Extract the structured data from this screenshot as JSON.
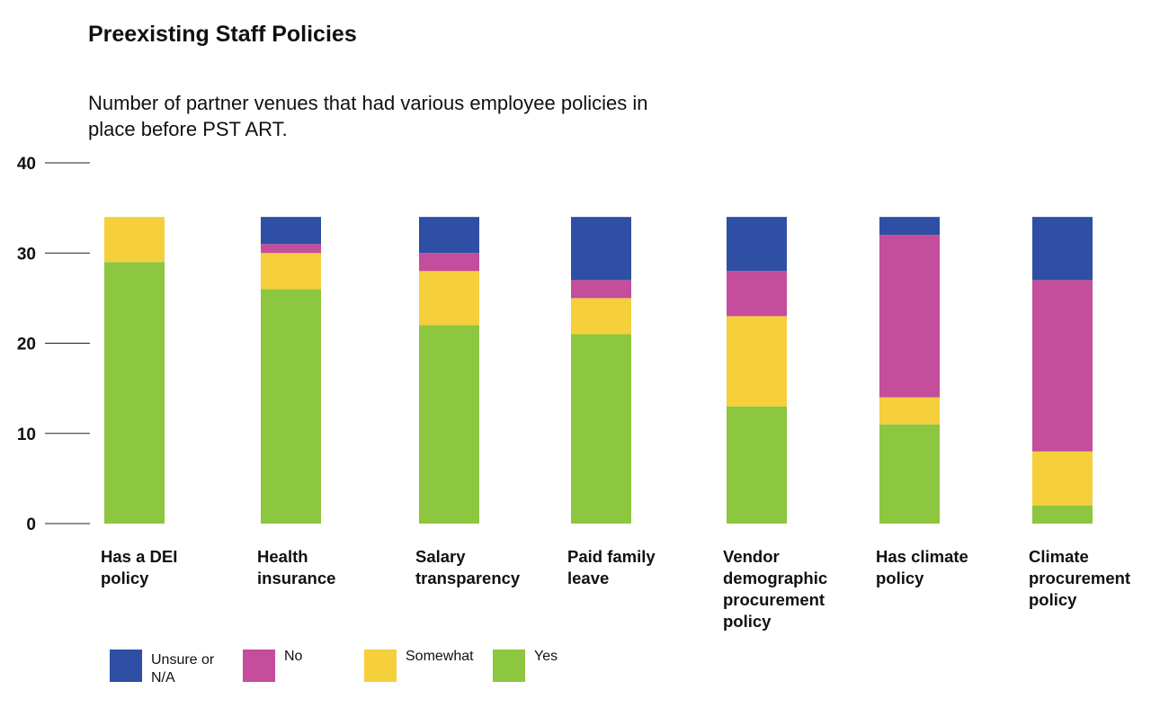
{
  "chart_data": {
    "type": "bar",
    "stacked": true,
    "title": "Preexisting Staff Policies",
    "subtitle": "Number of partner venues that had various employee policies in place before PST ART.",
    "categories": [
      "Has a DEI policy",
      "Health insurance",
      "Salary transparency",
      "Paid family leave",
      "Vendor demographic procurement policy",
      "Has climate policy",
      "Climate procurement policy"
    ],
    "ylim": [
      0,
      40
    ],
    "yticks": [
      "0",
      "10",
      "20",
      "30",
      "40"
    ],
    "grid": false,
    "legend_position": "bottom-left",
    "series": [
      {
        "name": "Yes",
        "color": "#8dc63f",
        "values": [
          29,
          26,
          22,
          21,
          13,
          11,
          2
        ]
      },
      {
        "name": "Somewhat",
        "color": "#f5cf3c",
        "values": [
          5,
          4,
          6,
          4,
          10,
          3,
          6
        ]
      },
      {
        "name": "No",
        "color": "#c44d9c",
        "values": [
          0,
          1,
          2,
          2,
          5,
          18,
          19
        ]
      },
      {
        "name": "Unsure or N/A",
        "color": "#2e4fa3",
        "values": [
          0,
          3,
          4,
          7,
          6,
          2,
          7
        ]
      }
    ],
    "legend_order": [
      "Unsure or N/A",
      "No",
      "Somewhat",
      "Yes"
    ]
  }
}
